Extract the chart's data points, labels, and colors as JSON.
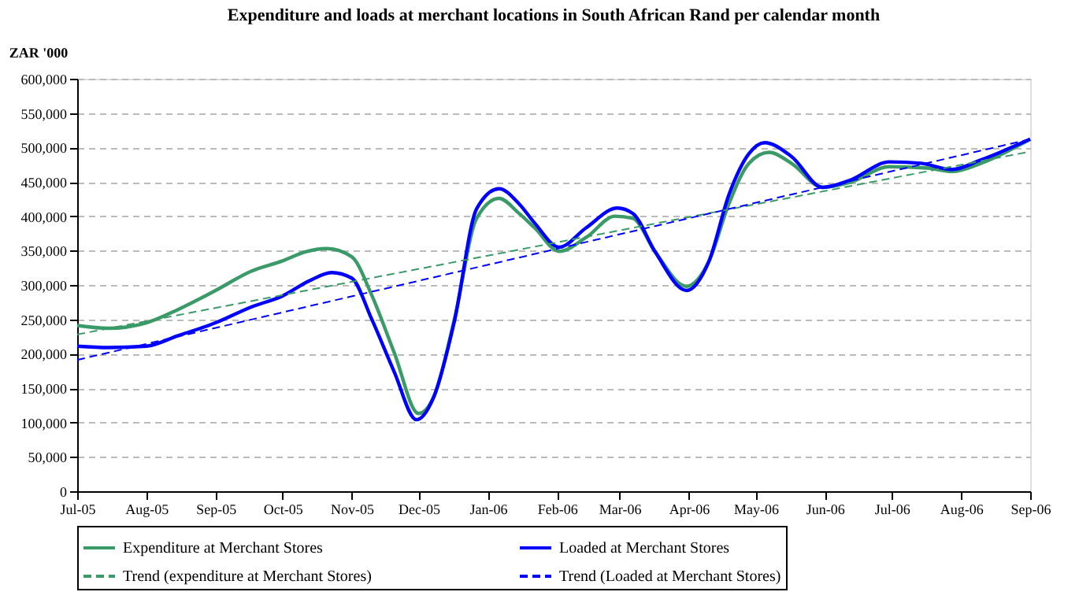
{
  "chart_data": {
    "type": "line",
    "title": "Expenditure and loads at merchant locations in South African Rand per calendar month",
    "ylabel": "ZAR '000",
    "xlim": [
      "2005-07-01",
      "2006-09-01"
    ],
    "xticks": [
      {
        "value": "2005-07",
        "label": "Jul-05"
      },
      {
        "value": "2005-08",
        "label": "Aug-05"
      },
      {
        "value": "2005-09",
        "label": "Sep-05"
      },
      {
        "value": "2005-10",
        "label": "Oct-05"
      },
      {
        "value": "2005-11",
        "label": "Nov-05"
      },
      {
        "value": "2005-12",
        "label": "Dec-05"
      },
      {
        "value": "2006-01",
        "label": "Jan-06"
      },
      {
        "value": "2006-02",
        "label": "Feb-06"
      },
      {
        "value": "2006-03",
        "label": "Mar-06"
      },
      {
        "value": "2006-04",
        "label": "Apr-06"
      },
      {
        "value": "2006-05",
        "label": "May-06"
      },
      {
        "value": "2006-06",
        "label": "Jun-06"
      },
      {
        "value": "2006-07",
        "label": "Jul-06"
      },
      {
        "value": "2006-08",
        "label": "Aug-06"
      },
      {
        "value": "2006-09",
        "label": "Sep-06"
      }
    ],
    "ylim": [
      0,
      600000
    ],
    "yticks": [
      {
        "value": 0,
        "label": "0"
      },
      {
        "value": 50000,
        "label": "50,000"
      },
      {
        "value": 100000,
        "label": "100,000"
      },
      {
        "value": 150000,
        "label": "150,000"
      },
      {
        "value": 200000,
        "label": "200,000"
      },
      {
        "value": 250000,
        "label": "250,000"
      },
      {
        "value": 300000,
        "label": "300,000"
      },
      {
        "value": 350000,
        "label": "350,000"
      },
      {
        "value": 400000,
        "label": "400,000"
      },
      {
        "value": 450000,
        "label": "450,000"
      },
      {
        "value": 500000,
        "label": "500,000"
      },
      {
        "value": 550000,
        "label": "550,000"
      },
      {
        "value": 600000,
        "label": "600,000"
      }
    ],
    "grid": "y",
    "legend": "bottom",
    "marker": "none",
    "series": [
      {
        "name": "Expenditure at Merchant Stores",
        "color": "#3a9a68",
        "line_style": "solid",
        "x": [
          "2005-07-01",
          "2005-07-15",
          "2005-08-01",
          "2005-08-15",
          "2005-09-01",
          "2005-09-17",
          "2005-10-01",
          "2005-10-11",
          "2005-10-21",
          "2005-11-01",
          "2005-11-10",
          "2005-11-20",
          "2005-12-01",
          "2005-12-08",
          "2005-12-17",
          "2005-12-27",
          "2006-01-06",
          "2006-01-15",
          "2006-01-22",
          "2006-02-02",
          "2006-02-14",
          "2006-02-27",
          "2006-03-07",
          "2006-03-17",
          "2006-03-31",
          "2006-04-10",
          "2006-04-19",
          "2006-04-28",
          "2006-05-07",
          "2006-05-17",
          "2006-05-31",
          "2006-06-12",
          "2006-06-30",
          "2006-07-17",
          "2006-07-28",
          "2006-08-10",
          "2006-09-01"
        ],
        "values": [
          241000,
          237000,
          245000,
          264000,
          292000,
          320000,
          335000,
          348000,
          353000,
          341000,
          285000,
          202000,
          113000,
          139000,
          250000,
          397000,
          426000,
          404000,
          383000,
          349000,
          369000,
          400000,
          397000,
          348000,
          298000,
          334000,
          418000,
          477000,
          493000,
          477000,
          442000,
          449000,
          472000,
          470000,
          465000,
          477000,
          512000
        ]
      },
      {
        "name": "Loaded at Merchant Stores",
        "color": "#0000ff",
        "line_style": "solid",
        "x": [
          "2005-07-01",
          "2005-07-15",
          "2005-08-01",
          "2005-08-15",
          "2005-09-01",
          "2005-09-17",
          "2005-10-01",
          "2005-10-13",
          "2005-10-23",
          "2005-11-01",
          "2005-11-10",
          "2005-11-20",
          "2005-11-30",
          "2005-12-08",
          "2005-12-17",
          "2005-12-27",
          "2006-01-06",
          "2006-01-15",
          "2006-01-22",
          "2006-02-02",
          "2006-02-14",
          "2006-02-28",
          "2006-03-07",
          "2006-03-17",
          "2006-03-31",
          "2006-04-10",
          "2006-04-19",
          "2006-04-28",
          "2006-05-05",
          "2006-05-17",
          "2006-05-31",
          "2006-06-12",
          "2006-06-30",
          "2006-07-14",
          "2006-07-28",
          "2006-08-10",
          "2006-09-01"
        ],
        "values": [
          211000,
          209000,
          211000,
          226000,
          245000,
          268000,
          284000,
          306000,
          318000,
          310000,
          250000,
          174000,
          104000,
          139000,
          247000,
          411000,
          440000,
          418000,
          390000,
          355000,
          383000,
          412000,
          404000,
          348000,
          292000,
          334000,
          431000,
          491000,
          507000,
          487000,
          442000,
          452000,
          479000,
          477000,
          468000,
          482000,
          512000
        ]
      },
      {
        "name": "Trend (expenditure at Merchant Stores)",
        "color": "#3a9a68",
        "line_style": "dashed",
        "x": [
          "2005-07-01",
          "2006-09-01"
        ],
        "values": [
          228000,
          494000
        ]
      },
      {
        "name": "Trend (Loaded at Merchant Stores)",
        "color": "#0000ff",
        "line_style": "dashed",
        "x": [
          "2005-07-01",
          "2006-09-01"
        ],
        "values": [
          191000,
          512000
        ]
      }
    ]
  }
}
